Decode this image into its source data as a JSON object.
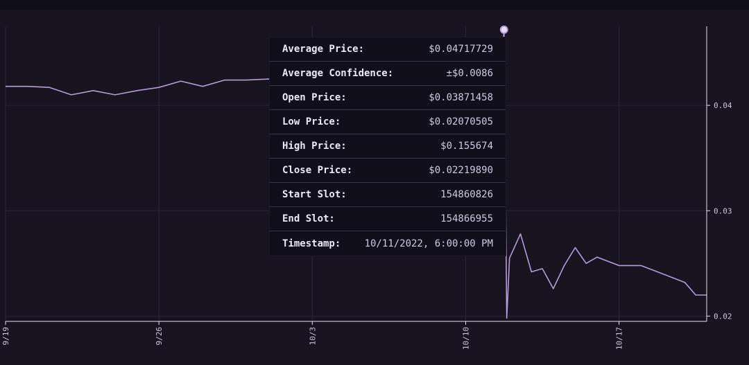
{
  "colors": {
    "background": "#17141f",
    "line": "#b39ddb",
    "grid": "#2a2638",
    "axis": "#e6e4ee",
    "tooltip_bg": "#100e18"
  },
  "tooltip": {
    "rows": [
      {
        "label": "Average Price:",
        "value": "$0.04717729"
      },
      {
        "label": "Average Confidence:",
        "value": "±$0.0086"
      },
      {
        "label": "Open Price:",
        "value": "$0.03871458"
      },
      {
        "label": "Low Price:",
        "value": "$0.02070505"
      },
      {
        "label": "High Price:",
        "value": "$0.155674"
      },
      {
        "label": "Close Price:",
        "value": "$0.02219890"
      },
      {
        "label": "Start Slot:",
        "value": "154860826"
      },
      {
        "label": "End Slot:",
        "value": "154866955"
      },
      {
        "label": "Timestamp:",
        "value": "10/11/2022, 6:00:00 PM"
      }
    ]
  },
  "chart_data": {
    "type": "line",
    "title": "",
    "xlabel": "",
    "ylabel": "",
    "x_ticks": [
      "9/19",
      "9/26",
      "10/3",
      "10/10",
      "10/17"
    ],
    "y_ticks": [
      "0.02",
      "0.03",
      "0.04"
    ],
    "ylim": [
      0.0195,
      0.0475
    ],
    "xlim": [
      "2022-09-19",
      "2022-10-21"
    ],
    "grid": true,
    "legend": "none",
    "highlighted_point": {
      "x": "2022-10-11T18:00",
      "y": 0.04717729
    },
    "series": [
      {
        "x": [
          "2022-09-19",
          "2022-09-20",
          "2022-09-21",
          "2022-09-22",
          "2022-09-23",
          "2022-09-24",
          "2022-09-25",
          "2022-09-26",
          "2022-09-27",
          "2022-09-28",
          "2022-09-29",
          "2022-09-30",
          "2022-10-01",
          "2022-10-02",
          "2022-10-03",
          "2022-10-04",
          "2022-10-05",
          "2022-10-06",
          "2022-10-07",
          "2022-10-08",
          "2022-10-09",
          "2022-10-10",
          "2022-10-11T00:00",
          "2022-10-11T12:00",
          "2022-10-11T18:00",
          "2022-10-11T21:00",
          "2022-10-12T00:00",
          "2022-10-12T12:00",
          "2022-10-13",
          "2022-10-13T12:00",
          "2022-10-14",
          "2022-10-14T12:00",
          "2022-10-15",
          "2022-10-15T12:00",
          "2022-10-16",
          "2022-10-17",
          "2022-10-18",
          "2022-10-19",
          "2022-10-20",
          "2022-10-20T12:00",
          "2022-10-21"
        ],
        "y": [
          0.0418,
          0.0418,
          0.0417,
          0.041,
          0.0414,
          0.041,
          0.0414,
          0.0417,
          0.0423,
          0.0418,
          0.0424,
          0.0424,
          0.0425,
          0.042,
          0.0421,
          0.0421,
          0.0421,
          0.0421,
          0.0421,
          0.0421,
          0.0421,
          0.0421,
          0.0386,
          0.0388,
          0.0472,
          0.0198,
          0.0255,
          0.0278,
          0.0242,
          0.0245,
          0.0226,
          0.0248,
          0.0265,
          0.025,
          0.0256,
          0.0248,
          0.0248,
          0.024,
          0.0232,
          0.022,
          0.022
        ]
      }
    ]
  }
}
